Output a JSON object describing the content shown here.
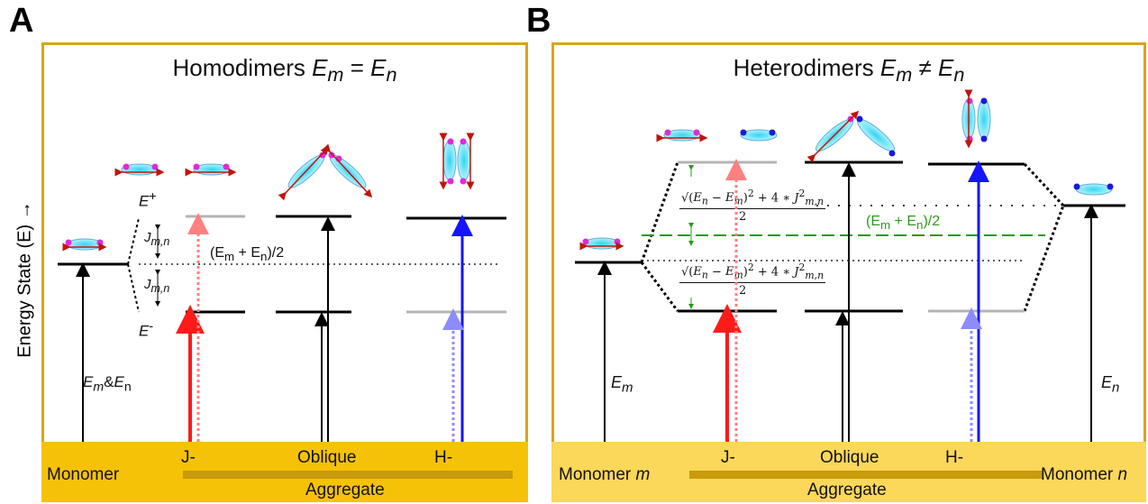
{
  "panels": {
    "a": {
      "letter": "A",
      "title": "Homodimers E_m = E_n",
      "y_axis_label": "Energy State (E) →",
      "monomer_energy_label": "E_m&E_n",
      "upper_state_label": "E⁺",
      "lower_state_label": "E⁻",
      "coupling_label_upper": "J_m,n",
      "coupling_label_lower": "J_m,n",
      "midline_label": "(E_m + E_n)/2",
      "band": {
        "monomer": "Monomer",
        "j": "J-",
        "oblique": "Oblique",
        "h": "H-",
        "aggregate": "Aggregate"
      }
    },
    "b": {
      "letter": "B",
      "title": "Heterodimers E_m ≠ E_n",
      "monomer_m_energy_label": "E_m",
      "monomer_n_energy_label": "E_n",
      "midline_label": "(E_m + E_n)/2",
      "formula_numerator": "√((E_n − E_m)² + 4 * J²_m,n)",
      "formula_denominator": "2",
      "band": {
        "monomer_m": "Monomer m",
        "j": "J-",
        "oblique": "Oblique",
        "h": "H-",
        "monomer_n": "Monomer n",
        "aggregate": "Aggregate"
      }
    }
  },
  "colors": {
    "frame": "#d9a514",
    "band_a": "#f5c208",
    "band_b": "#fbd75a",
    "aggregate_bar": "#c99a0c",
    "j_arrow": "#ff1a1a",
    "j_arrow_faint": "#ff8080",
    "h_arrow": "#1414ff",
    "h_arrow_faint": "#8c8cff",
    "dark_level": "#000000",
    "dim_level": "#b4b4b4",
    "midline_b": "#2b9a1e",
    "dye": "#48d8ee",
    "dye_end_a": "#e02ad8",
    "dye_end_b": "#1a1adc",
    "dipole": "#c0140c"
  }
}
